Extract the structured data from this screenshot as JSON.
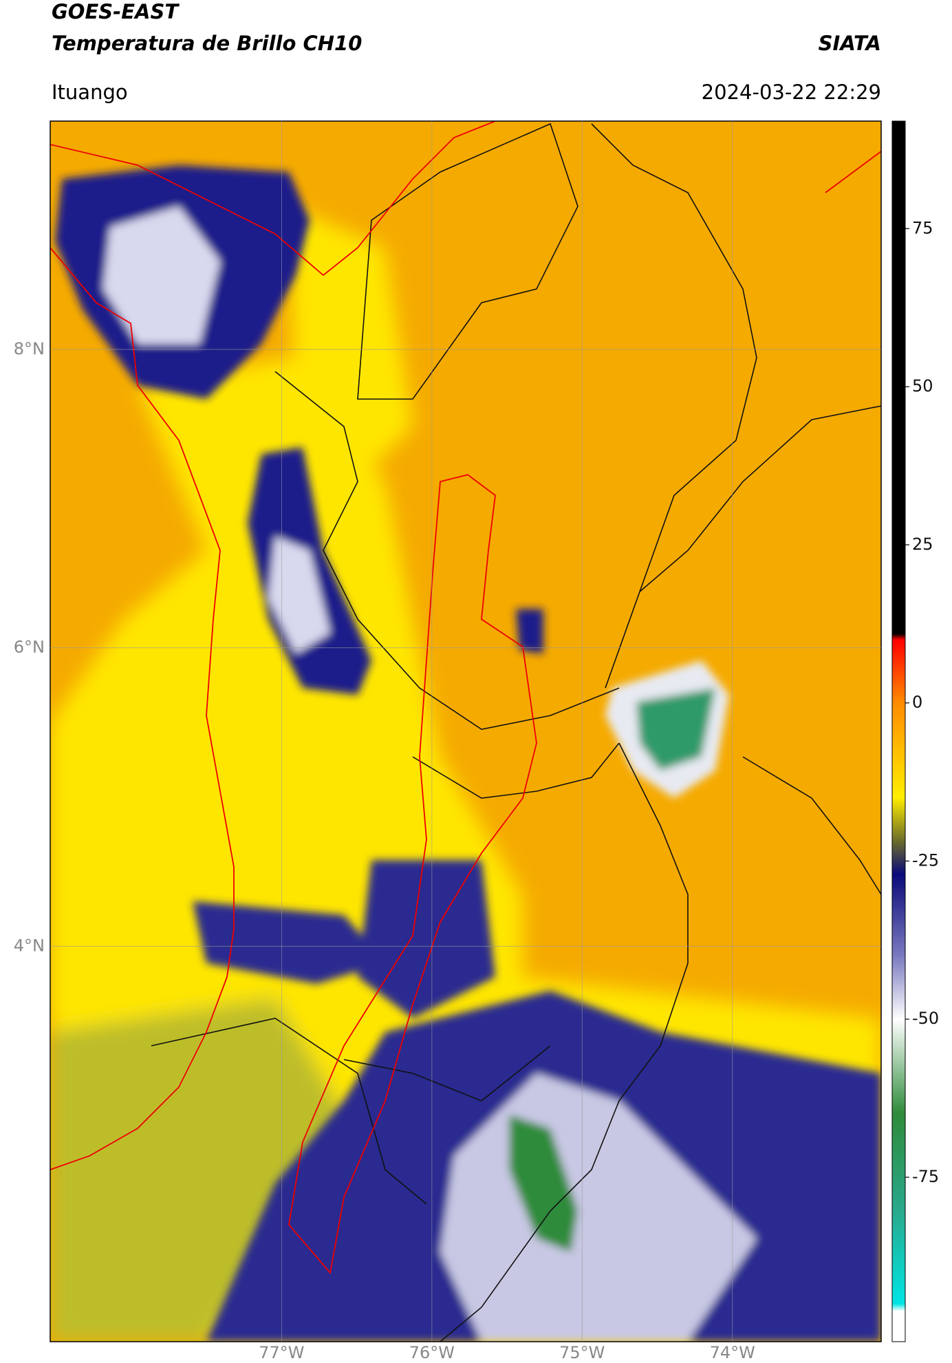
{
  "map": {
    "title": "GOES-EAST",
    "subtitle": "Temperatura de Brillo CH10",
    "source": "SIATA",
    "location": "Ituango",
    "datetime": "2024-03-22 22:29",
    "xlim": [
      -78.54,
      -73.01
    ],
    "ylim": [
      1.35,
      9.53
    ],
    "xticks": [
      {
        "value": -77,
        "label": "77°W"
      },
      {
        "value": -76,
        "label": "76°W"
      },
      {
        "value": -75,
        "label": "75°W"
      },
      {
        "value": -74,
        "label": "74°W"
      }
    ],
    "yticks": [
      {
        "value": 8,
        "label": "8°N"
      },
      {
        "value": 6,
        "label": "6°N"
      },
      {
        "value": 4,
        "label": "4°N"
      }
    ],
    "grid": true,
    "colorbar": {
      "lim": [
        -101,
        92
      ],
      "ticks": [
        75,
        50,
        25,
        0,
        -25,
        -50,
        -75
      ]
    }
  }
}
